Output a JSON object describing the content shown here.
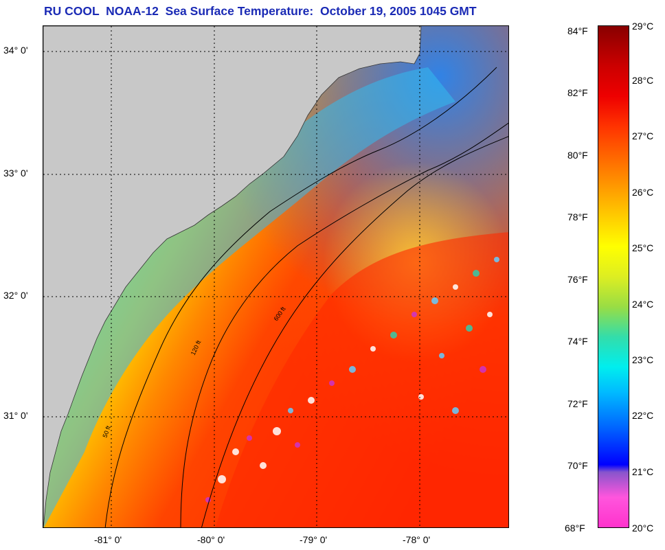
{
  "title": "RU COOL  NOAA-12  Sea Surface Temperature:  October 19, 2005 1045 GMT",
  "latitude_labels": [
    "34° 0'",
    "33° 0'",
    "32° 0'",
    "31° 0'"
  ],
  "longitude_labels": [
    "-81° 0'",
    "-80° 0'",
    "-79° 0'",
    "-78° 0'"
  ],
  "contour_labels": [
    "50 ft",
    "120 ft",
    "600 ft"
  ],
  "colorbar": {
    "fahrenheit_labels": [
      "84°F",
      "82°F",
      "80°F",
      "78°F",
      "76°F",
      "74°F",
      "72°F",
      "70°F",
      "68°F"
    ],
    "celsius_labels": [
      "29°C",
      "28°C",
      "27°C",
      "26°C",
      "25°C",
      "24°C",
      "23°C",
      "22°C",
      "21°C",
      "20°C"
    ]
  },
  "colors": {
    "title": "#1a2ab5",
    "land": "#c8c8c8",
    "cold": "#0066ff",
    "warm": "#ff2200"
  }
}
